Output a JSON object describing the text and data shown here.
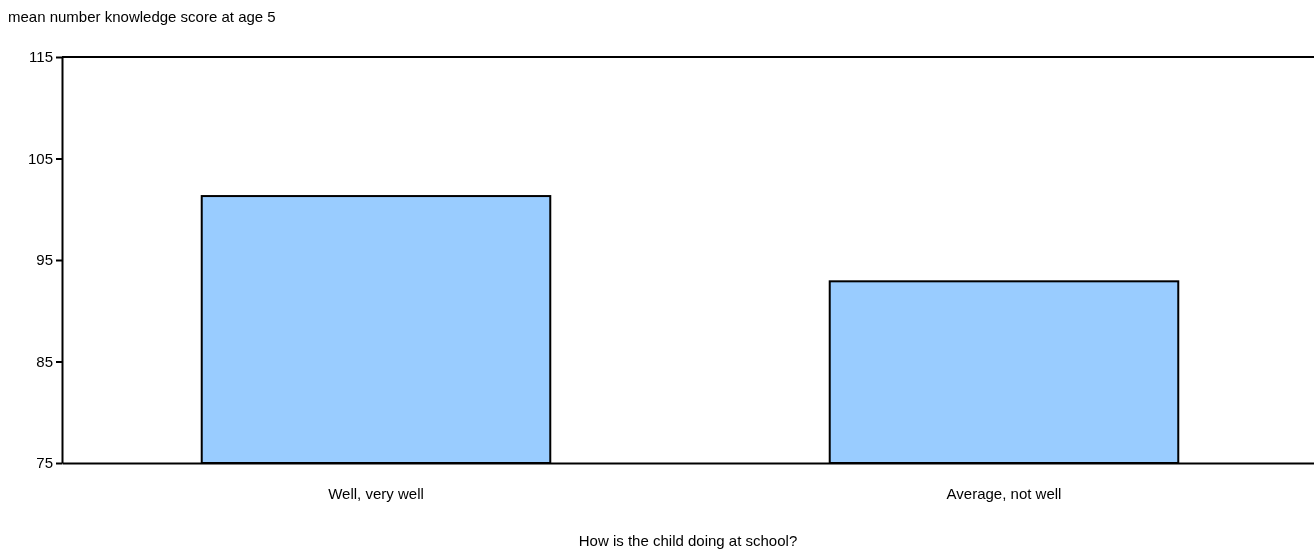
{
  "chart_data": {
    "type": "bar",
    "ylabel": "mean number knowledge score at age 5",
    "xlabel": "How is the child doing at school?",
    "categories": [
      "Well, very well",
      "Average, not well"
    ],
    "values": [
      101.3,
      92.9
    ],
    "color": "#99ccff",
    "ylim": [
      75,
      115
    ],
    "yticks": [
      75,
      85,
      95,
      105,
      115
    ],
    "grid": false
  }
}
